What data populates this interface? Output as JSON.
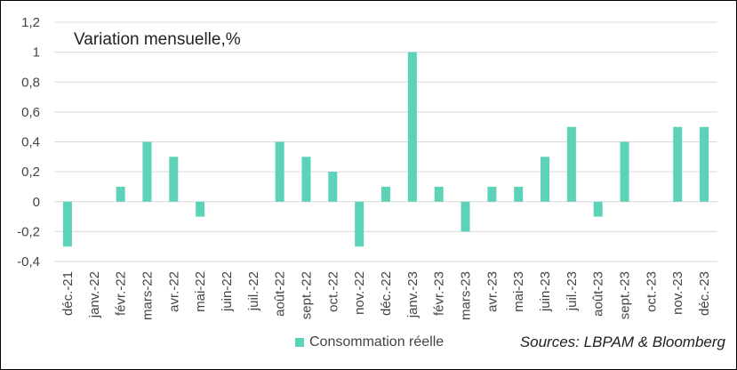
{
  "chart_data": {
    "type": "bar",
    "title": "Variation mensuelle,%",
    "xlabel": "",
    "ylabel": "",
    "ylim": [
      -0.4,
      1.2
    ],
    "yticks": [
      "-0,4",
      "-0,2",
      "0",
      "0,2",
      "0,4",
      "0,6",
      "0,8",
      "1",
      "1,2"
    ],
    "grid": true,
    "legend_position": "bottom",
    "bar_color": "#5cd3b8",
    "categories": [
      "déc.-21",
      "janv.-22",
      "févr.-22",
      "mars-22",
      "avr.-22",
      "mai-22",
      "juin-22",
      "juil.-22",
      "août-22",
      "sept.-22",
      "oct.-22",
      "nov.-22",
      "déc.-22",
      "janv.-23",
      "févr.-23",
      "mars-23",
      "avr.-23",
      "mai-23",
      "juin-23",
      "juil.-23",
      "août-23",
      "sept.-23",
      "oct.-23",
      "nov.-23",
      "déc.-23"
    ],
    "series": [
      {
        "name": "Consommation réelle",
        "values": [
          -0.3,
          0,
          0.1,
          0.4,
          0.3,
          -0.1,
          0,
          0,
          0.4,
          0.3,
          0.2,
          -0.3,
          0.1,
          1.0,
          0.1,
          -0.2,
          0.1,
          0.1,
          0.3,
          0.5,
          -0.1,
          0.4,
          0,
          0.5,
          0.5
        ]
      }
    ]
  },
  "source": "Sources: LBPAM & Bloomberg"
}
